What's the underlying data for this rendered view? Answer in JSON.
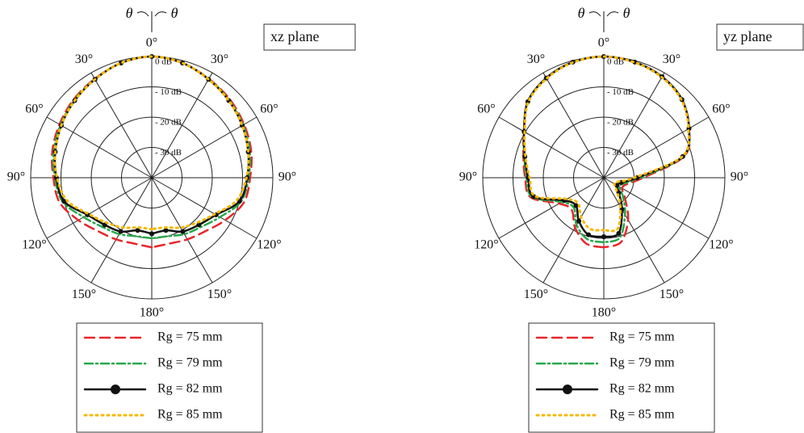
{
  "chart_data": [
    {
      "type": "polar",
      "title": "xz plane",
      "theta_label": "θ",
      "theta": [
        -180,
        -165,
        -150,
        -135,
        -120,
        -105,
        -90,
        -75,
        -60,
        -45,
        -30,
        -15,
        0,
        15,
        30,
        45,
        60,
        75,
        90,
        105,
        120,
        135,
        150,
        165,
        180
      ],
      "thetaticks": [
        {
          "value": 0,
          "label": "0°"
        },
        {
          "value": 30,
          "label": "30°"
        },
        {
          "value": 60,
          "label": "60°"
        },
        {
          "value": 90,
          "label": "90°"
        },
        {
          "value": 120,
          "label": "120°"
        },
        {
          "value": 150,
          "label": "150°"
        },
        {
          "value": 180,
          "label": "180°"
        },
        {
          "value": -150,
          "label": "150°"
        },
        {
          "value": -120,
          "label": "120°"
        },
        {
          "value": -90,
          "label": "90°"
        },
        {
          "value": -60,
          "label": "60°"
        },
        {
          "value": -30,
          "label": "30°"
        }
      ],
      "rlim": [
        -40,
        0
      ],
      "rticks": [
        {
          "value": 0,
          "label": "0 dB"
        },
        {
          "value": -10,
          "label": "- 10 dB"
        },
        {
          "value": -20,
          "label": "- 20 dB"
        },
        {
          "value": -30,
          "label": "- 30 dB"
        }
      ],
      "series": [
        {
          "name": "Rg = 75 mm",
          "color": "#e8262b",
          "linestyle": "dashed",
          "marker": false,
          "values": [
            -17,
            -17.5,
            -16.5,
            -15,
            -12,
            -8.5,
            -7.5,
            -6,
            -4.8,
            -3.5,
            -2.3,
            -0.8,
            0,
            -0.8,
            -2.3,
            -3.5,
            -4.8,
            -6,
            -7.5,
            -8.5,
            -12,
            -15,
            -16.5,
            -17.5,
            -17
          ]
        },
        {
          "name": "Rg = 79 mm",
          "color": "#27a84a",
          "linestyle": "dashdot",
          "marker": false,
          "values": [
            -20,
            -20,
            -18.5,
            -17,
            -14,
            -9.5,
            -8,
            -6.5,
            -5.2,
            -3.8,
            -2.4,
            -0.8,
            0,
            -0.8,
            -2.4,
            -3.8,
            -5.2,
            -6.5,
            -8,
            -9.5,
            -14,
            -17,
            -18.5,
            -20,
            -20
          ]
        },
        {
          "name": "Rg = 82 mm",
          "color": "#111111",
          "linestyle": "solid",
          "marker": true,
          "values": [
            -21.5,
            -22,
            -19.5,
            -18,
            -15.5,
            -10,
            -8.5,
            -7,
            -5.5,
            -4,
            -2.5,
            -0.8,
            0,
            -0.8,
            -2.5,
            -4,
            -5.5,
            -7,
            -8.5,
            -10,
            -15.5,
            -18,
            -19.5,
            -22,
            -21.5
          ]
        },
        {
          "name": "Rg = 85 mm",
          "color": "#f5b800",
          "linestyle": "dotted",
          "marker": false,
          "values": [
            -23,
            -23,
            -21,
            -19,
            -16,
            -11,
            -8.7,
            -7,
            -5.5,
            -4,
            -2.5,
            -0.8,
            0,
            -0.8,
            -2.5,
            -4,
            -5.5,
            -7,
            -8.7,
            -11,
            -16,
            -19,
            -21,
            -23,
            -23
          ]
        }
      ]
    },
    {
      "type": "polar",
      "title": "yz plane",
      "theta_label": "θ",
      "theta": [
        -180,
        -165,
        -150,
        -135,
        -120,
        -105,
        -90,
        -75,
        -60,
        -45,
        -30,
        -15,
        0,
        15,
        30,
        45,
        60,
        75,
        90,
        105,
        120,
        135,
        150,
        165,
        180
      ],
      "thetaticks": [
        {
          "value": 0,
          "label": "0°"
        },
        {
          "value": 30,
          "label": "30°"
        },
        {
          "value": 60,
          "label": "60°"
        },
        {
          "value": 90,
          "label": "90°"
        },
        {
          "value": 120,
          "label": "120°"
        },
        {
          "value": 150,
          "label": "150°"
        },
        {
          "value": 180,
          "label": "180°"
        },
        {
          "value": -150,
          "label": "150°"
        },
        {
          "value": -120,
          "label": "120°"
        },
        {
          "value": -90,
          "label": "90°"
        },
        {
          "value": -60,
          "label": "60°"
        },
        {
          "value": -30,
          "label": "30°"
        }
      ],
      "rlim": [
        -40,
        0
      ],
      "rticks": [
        {
          "value": 0,
          "label": "0 dB"
        },
        {
          "value": -10,
          "label": "- 10 dB"
        },
        {
          "value": -20,
          "label": "- 20 dB"
        },
        {
          "value": -30,
          "label": "- 30 dB"
        }
      ],
      "series": [
        {
          "name": "Rg = 75 mm",
          "color": "#e8262b",
          "linestyle": "dashed",
          "marker": false,
          "values": [
            -17,
            -17.5,
            -21,
            -25,
            -23,
            -15,
            -14,
            -12.5,
            -9.5,
            -4.5,
            -2,
            -0.5,
            0,
            -0.5,
            -1.5,
            -3.5,
            -7.5,
            -12.5,
            -27,
            -32,
            -33,
            -30,
            -24,
            -18,
            -17
          ]
        },
        {
          "name": "Rg = 79 mm",
          "color": "#27a84a",
          "linestyle": "dashdot",
          "marker": false,
          "values": [
            -18.7,
            -19,
            -22,
            -26,
            -24,
            -15.5,
            -14.5,
            -12.8,
            -9.5,
            -4.5,
            -2,
            -0.5,
            0,
            -0.5,
            -1.5,
            -3.5,
            -7.5,
            -12.8,
            -28,
            -33,
            -34,
            -31,
            -26,
            -19.5,
            -18.7
          ]
        },
        {
          "name": "Rg = 82 mm",
          "color": "#111111",
          "linestyle": "solid",
          "marker": true,
          "values": [
            -20.5,
            -20.5,
            -23.5,
            -27,
            -25,
            -16,
            -15,
            -13,
            -9.6,
            -4.5,
            -2,
            -0.5,
            0,
            -0.5,
            -1.5,
            -3.5,
            -7.5,
            -13,
            -29,
            -34,
            -35,
            -33,
            -28,
            -21,
            -20.5
          ]
        },
        {
          "name": "Rg = 85 mm",
          "color": "#f5b800",
          "linestyle": "dotted",
          "marker": false,
          "values": [
            -22.7,
            -22.5,
            -25,
            -28,
            -26,
            -16.5,
            -15.5,
            -13.2,
            -9.8,
            -4.7,
            -2.2,
            -0.6,
            0,
            -0.6,
            -1.7,
            -3.7,
            -7.7,
            -13.2,
            -30,
            -35,
            -36,
            -34,
            -29,
            -22.5,
            -22.7
          ]
        }
      ]
    }
  ]
}
